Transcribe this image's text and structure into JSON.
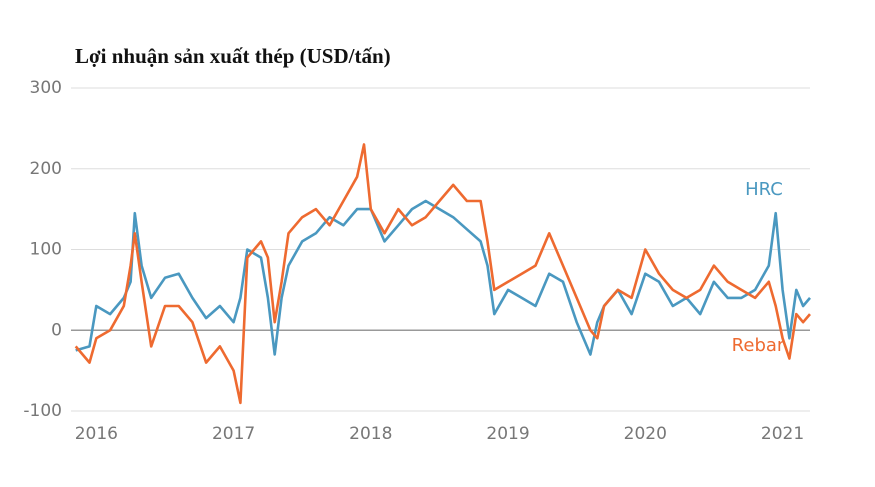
{
  "chart_data": {
    "type": "line",
    "title": "Lợi nhuận sản xuất thép (USD/tấn)",
    "x": [
      2015.85,
      2015.95,
      2016.0,
      2016.1,
      2016.2,
      2016.25,
      2016.28,
      2016.33,
      2016.4,
      2016.5,
      2016.6,
      2016.7,
      2016.8,
      2016.9,
      2017.0,
      2017.05,
      2017.1,
      2017.2,
      2017.25,
      2017.3,
      2017.35,
      2017.4,
      2017.5,
      2017.6,
      2017.7,
      2017.8,
      2017.9,
      2017.95,
      2018.0,
      2018.1,
      2018.2,
      2018.3,
      2018.4,
      2018.5,
      2018.6,
      2018.7,
      2018.8,
      2018.85,
      2018.9,
      2019.0,
      2019.1,
      2019.2,
      2019.3,
      2019.4,
      2019.5,
      2019.6,
      2019.65,
      2019.7,
      2019.8,
      2019.9,
      2020.0,
      2020.1,
      2020.2,
      2020.3,
      2020.4,
      2020.5,
      2020.6,
      2020.7,
      2020.8,
      2020.9,
      2020.95,
      2021.0,
      2021.05,
      2021.1,
      2021.15,
      2021.2
    ],
    "series": [
      {
        "name": "HRC",
        "color": "#4a98c0",
        "values": [
          -25,
          -20,
          30,
          20,
          40,
          60,
          145,
          80,
          40,
          65,
          70,
          40,
          15,
          30,
          10,
          40,
          100,
          90,
          40,
          -30,
          40,
          80,
          110,
          120,
          140,
          130,
          150,
          150,
          150,
          110,
          130,
          150,
          160,
          150,
          140,
          125,
          110,
          80,
          20,
          50,
          40,
          30,
          70,
          60,
          10,
          -30,
          10,
          30,
          50,
          20,
          70,
          60,
          30,
          40,
          20,
          60,
          40,
          40,
          50,
          80,
          145,
          50,
          -10,
          50,
          30,
          40
        ]
      },
      {
        "name": "Rebar",
        "color": "#ee6a30",
        "values": [
          -20,
          -40,
          -10,
          0,
          30,
          80,
          120,
          60,
          -20,
          30,
          30,
          10,
          -40,
          -20,
          -50,
          -90,
          90,
          110,
          90,
          10,
          60,
          120,
          140,
          150,
          130,
          160,
          190,
          230,
          150,
          120,
          150,
          130,
          140,
          160,
          180,
          160,
          160,
          110,
          50,
          60,
          70,
          80,
          120,
          80,
          40,
          0,
          -10,
          30,
          50,
          40,
          100,
          70,
          50,
          40,
          50,
          80,
          60,
          50,
          40,
          60,
          30,
          -10,
          -35,
          20,
          10,
          20
        ]
      }
    ],
    "xlim": [
      2015.83,
      2021.2
    ],
    "xticks": [
      2016,
      2017,
      2018,
      2019,
      2020,
      2021
    ],
    "ylim": [
      -100,
      300
    ],
    "yticks": [
      -100,
      0,
      100,
      200,
      300
    ],
    "grid": true
  }
}
